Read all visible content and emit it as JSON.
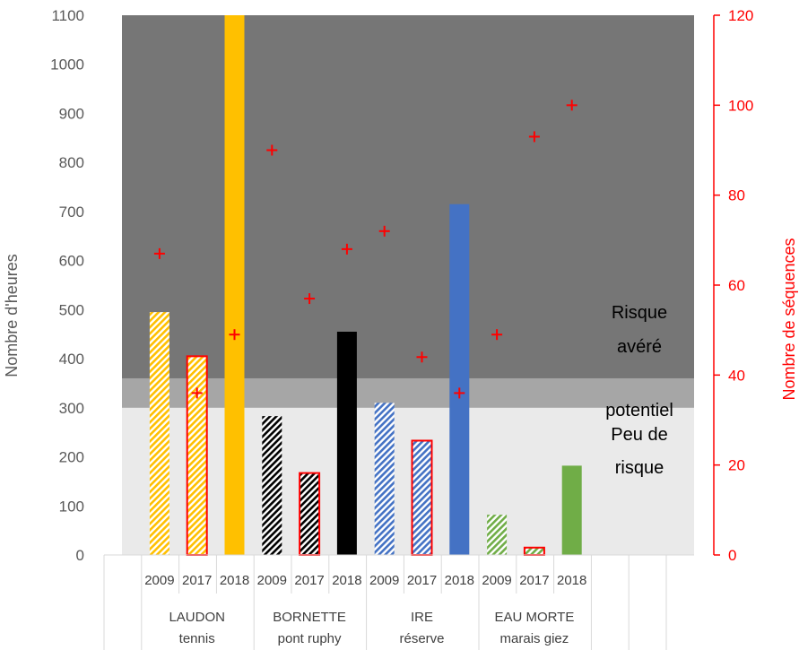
{
  "chart_data": {
    "type": "bar",
    "title": "",
    "ylabel": "Nombre d'heures",
    "y2label": "Nombre de séquences",
    "ylim": [
      0,
      1100
    ],
    "y2lim": [
      0,
      120
    ],
    "yticks": [
      0,
      100,
      200,
      300,
      400,
      500,
      600,
      700,
      800,
      900,
      1000,
      1100
    ],
    "y2ticks": [
      0,
      20,
      40,
      60,
      80,
      100,
      120
    ],
    "zones": [
      {
        "name": "Peu de risque",
        "lines": [
          "Peu de",
          "risque"
        ],
        "from": 0,
        "to": 300,
        "color": "#eaeaea"
      },
      {
        "name": "potentiel",
        "lines": [
          "potentiel"
        ],
        "from": 300,
        "to": 360,
        "color": "#a6a6a6"
      },
      {
        "name": "Risque avéré",
        "lines": [
          "Risque",
          "avéré"
        ],
        "from": 360,
        "to": 1100,
        "color": "#767676"
      }
    ],
    "groups": [
      {
        "line1": "LAUDON",
        "line2": "tennis",
        "color": "#ffc000"
      },
      {
        "line1": "BORNETTE",
        "line2": "pont ruphy",
        "color": "#000000"
      },
      {
        "line1": "IRE",
        "line2": "réserve",
        "color": "#4472c4"
      },
      {
        "line1": "EAU MORTE",
        "line2": "marais giez",
        "color": "#70ad47"
      }
    ],
    "years": [
      "2009",
      "2017",
      "2018"
    ],
    "year_styles": [
      "hatched",
      "hatched-red-outline",
      "solid"
    ],
    "hours": [
      [
        495,
        405,
        1100
      ],
      [
        283,
        167,
        455
      ],
      [
        310,
        233,
        715
      ],
      [
        82,
        15,
        182
      ]
    ],
    "sequences": [
      [
        67,
        36,
        49
      ],
      [
        90,
        57,
        68
      ],
      [
        72,
        44,
        36
      ],
      [
        49,
        93,
        100
      ]
    ],
    "sequence_marker": "+",
    "sequence_color": "#ff0000"
  }
}
